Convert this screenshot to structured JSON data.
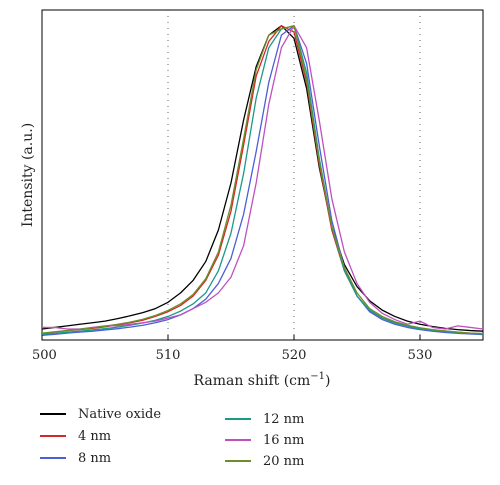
{
  "chart_data": {
    "type": "line",
    "xlabel": "Raman shift (cm",
    "xlabel_sup": "−1",
    "xlabel_end": ")",
    "ylabel": "Intensity (a.u.)",
    "xlim": [
      500,
      535
    ],
    "ylim": [
      0,
      1.05
    ],
    "x_ticks": [
      500,
      510,
      520,
      530
    ],
    "x_tick_labels": [
      "500",
      "510",
      "520",
      "530"
    ],
    "vlines": [
      510,
      520,
      530
    ],
    "grid": false,
    "legend_placement": "below",
    "x": [
      500,
      501,
      502,
      503,
      504,
      505,
      506,
      507,
      508,
      509,
      510,
      511,
      512,
      513,
      514,
      515,
      516,
      517,
      518,
      519,
      520,
      521,
      522,
      523,
      524,
      525,
      526,
      527,
      528,
      529,
      530,
      531,
      532,
      533,
      534,
      535
    ],
    "series": [
      {
        "name": "Native oxide",
        "color": "#000000",
        "values": [
          0.035,
          0.04,
          0.045,
          0.05,
          0.055,
          0.06,
          0.068,
          0.077,
          0.087,
          0.1,
          0.12,
          0.15,
          0.19,
          0.25,
          0.35,
          0.5,
          0.7,
          0.87,
          0.97,
          1.0,
          0.96,
          0.8,
          0.55,
          0.36,
          0.24,
          0.17,
          0.125,
          0.095,
          0.075,
          0.06,
          0.05,
          0.043,
          0.037,
          0.033,
          0.03,
          0.028
        ]
      },
      {
        "name": "4 nm",
        "color": "#d62728",
        "values": [
          0.02,
          0.025,
          0.03,
          0.033,
          0.037,
          0.042,
          0.048,
          0.055,
          0.063,
          0.075,
          0.09,
          0.11,
          0.14,
          0.19,
          0.27,
          0.41,
          0.62,
          0.84,
          0.95,
          1.0,
          0.98,
          0.82,
          0.56,
          0.35,
          0.22,
          0.14,
          0.095,
          0.07,
          0.055,
          0.045,
          0.037,
          0.032,
          0.028,
          0.025,
          0.022,
          0.02
        ]
      },
      {
        "name": "8 nm",
        "color": "#4c5fd5",
        "values": [
          0.015,
          0.018,
          0.022,
          0.025,
          0.028,
          0.032,
          0.036,
          0.041,
          0.047,
          0.055,
          0.065,
          0.08,
          0.1,
          0.13,
          0.18,
          0.26,
          0.4,
          0.6,
          0.82,
          0.97,
          1.0,
          0.88,
          0.62,
          0.38,
          0.23,
          0.14,
          0.09,
          0.065,
          0.05,
          0.04,
          0.033,
          0.028,
          0.024,
          0.021,
          0.019,
          0.017
        ]
      },
      {
        "name": "12 nm",
        "color": "#1a9a8a",
        "values": [
          0.018,
          0.021,
          0.025,
          0.028,
          0.032,
          0.036,
          0.041,
          0.047,
          0.054,
          0.063,
          0.075,
          0.092,
          0.115,
          0.15,
          0.22,
          0.34,
          0.53,
          0.77,
          0.93,
          0.99,
          1.0,
          0.85,
          0.58,
          0.36,
          0.22,
          0.14,
          0.095,
          0.07,
          0.054,
          0.044,
          0.036,
          0.031,
          0.027,
          0.024,
          0.021,
          0.019
        ]
      },
      {
        "name": "16 nm",
        "color": "#c050c0",
        "values": [
          0.04,
          0.04,
          0.035,
          0.035,
          0.04,
          0.045,
          0.045,
          0.05,
          0.055,
          0.06,
          0.07,
          0.08,
          0.1,
          0.12,
          0.15,
          0.2,
          0.3,
          0.5,
          0.75,
          0.93,
          1.0,
          0.93,
          0.7,
          0.45,
          0.28,
          0.18,
          0.12,
          0.085,
          0.065,
          0.05,
          0.06,
          0.04,
          0.035,
          0.045,
          0.04,
          0.035
        ]
      },
      {
        "name": "20 nm",
        "color": "#6b8f2a",
        "values": [
          0.022,
          0.026,
          0.03,
          0.034,
          0.039,
          0.044,
          0.05,
          0.057,
          0.066,
          0.078,
          0.094,
          0.115,
          0.145,
          0.195,
          0.28,
          0.43,
          0.64,
          0.86,
          0.97,
          0.99,
          1.0,
          0.83,
          0.57,
          0.36,
          0.23,
          0.15,
          0.1,
          0.075,
          0.058,
          0.047,
          0.039,
          0.033,
          0.029,
          0.025,
          0.022,
          0.02
        ]
      }
    ]
  }
}
